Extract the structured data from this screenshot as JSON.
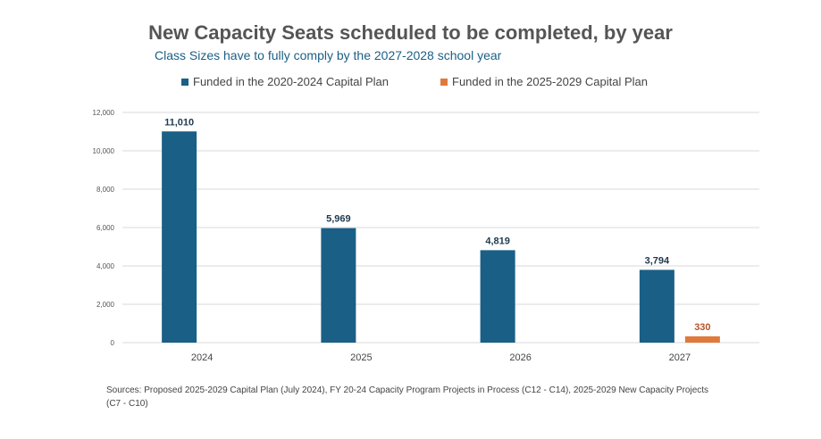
{
  "chart_data": {
    "type": "bar",
    "title": "New Capacity Seats scheduled to be completed, by year",
    "subtitle": "Class Sizes have to fully comply by the 2027-2028 school year",
    "categories": [
      "2024",
      "2025",
      "2026",
      "2027"
    ],
    "series": [
      {
        "name": "Funded in the 2020-2024 Capital Plan",
        "color": "#1a5f86",
        "values": [
          11010,
          5969,
          4819,
          3794
        ],
        "labels": [
          "11,010",
          "5,969",
          "4,819",
          "3,794"
        ]
      },
      {
        "name": "Funded in the 2025-2029 Capital Plan",
        "color": "#e07a3c",
        "values": [
          null,
          null,
          null,
          330
        ],
        "labels": [
          "",
          "",
          "",
          "330"
        ]
      }
    ],
    "y_ticks": [
      0,
      2000,
      4000,
      6000,
      8000,
      10000,
      12000
    ],
    "y_tick_labels": [
      "0",
      "2,000",
      "4,000",
      "6,000",
      "8,000",
      "10,000",
      "12,000"
    ],
    "ylim": [
      0,
      12000
    ],
    "grid": true,
    "legend_position": "top",
    "xlabel": "",
    "ylabel": ""
  },
  "source": "Sources: Proposed 2025-2029 Capital Plan (July 2024), FY 20-24 Capacity Program Projects in Process (C12 - C14), 2025-2029 New Capacity Projects (C7 - C10)"
}
